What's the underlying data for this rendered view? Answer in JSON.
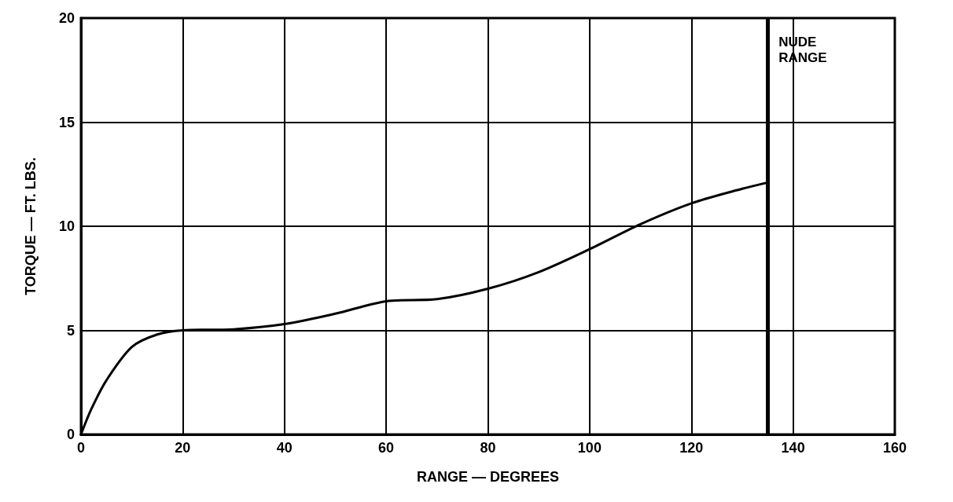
{
  "chart_data": {
    "type": "line",
    "xlabel": "RANGE — DEGREES",
    "ylabel": "TORQUE — FT. LBS.",
    "x": [
      0,
      2,
      5,
      10,
      15,
      20,
      30,
      40,
      50,
      60,
      70,
      80,
      90,
      100,
      110,
      120,
      130,
      135
    ],
    "series": [
      {
        "color": "#000000",
        "values": [
          0,
          1.2,
          2.6,
          4.2,
          4.8,
          5.0,
          5.05,
          5.3,
          5.8,
          6.4,
          6.5,
          7.0,
          7.8,
          8.9,
          10.1,
          11.1,
          11.8,
          12.1
        ]
      }
    ],
    "xlim": [
      0,
      160
    ],
    "xticks": [
      0,
      20,
      40,
      60,
      80,
      100,
      120,
      140,
      160
    ],
    "ylim": [
      0,
      20
    ],
    "yticks": [
      0,
      5,
      10,
      15,
      20
    ],
    "ref_lines": [
      {
        "axis": "x",
        "value": 135,
        "label": "NUDE RANGE",
        "color": "#000000"
      }
    ],
    "grid": true,
    "marker": "none",
    "line_style": "solid"
  }
}
